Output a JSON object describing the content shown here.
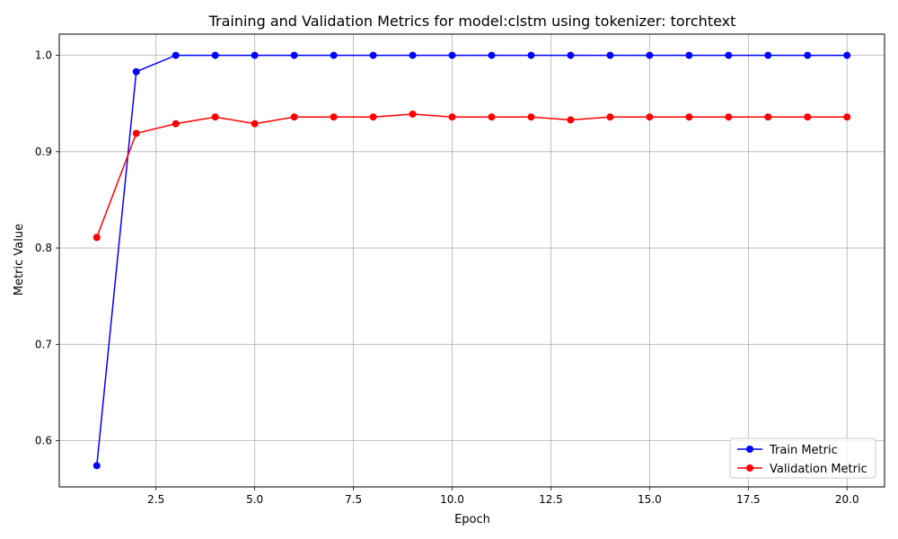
{
  "chart_data": {
    "type": "line",
    "title": "Training and Validation Metrics for model:clstm using tokenizer: torchtext",
    "xlabel": "Epoch",
    "ylabel": "Metric Value",
    "xlim": [
      0.05,
      20.95
    ],
    "ylim": [
      0.552,
      1.022
    ],
    "xticks": [
      2.5,
      5.0,
      7.5,
      10.0,
      12.5,
      15.0,
      17.5,
      20.0
    ],
    "xtick_labels": [
      "2.5",
      "5.0",
      "7.5",
      "10.0",
      "12.5",
      "15.0",
      "17.5",
      "20.0"
    ],
    "yticks": [
      0.6,
      0.7,
      0.8,
      0.9,
      1.0
    ],
    "ytick_labels": [
      "0.6",
      "0.7",
      "0.8",
      "0.9",
      "1.0"
    ],
    "grid": true,
    "legend_position": "bottom-right",
    "x": [
      1,
      2,
      3,
      4,
      5,
      6,
      7,
      8,
      9,
      10,
      11,
      12,
      13,
      14,
      15,
      16,
      17,
      18,
      19,
      20
    ],
    "series": [
      {
        "name": "Train Metric",
        "color": "#0000ff",
        "values": [
          0.574,
          0.983,
          1.0,
          1.0,
          1.0,
          1.0,
          1.0,
          1.0,
          1.0,
          1.0,
          1.0,
          1.0,
          1.0,
          1.0,
          1.0,
          1.0,
          1.0,
          1.0,
          1.0,
          1.0
        ]
      },
      {
        "name": "Validation Metric",
        "color": "#ff0000",
        "values": [
          0.811,
          0.919,
          0.929,
          0.936,
          0.929,
          0.936,
          0.936,
          0.936,
          0.939,
          0.936,
          0.936,
          0.936,
          0.933,
          0.936,
          0.936,
          0.936,
          0.936,
          0.936,
          0.936,
          0.936
        ]
      }
    ]
  }
}
